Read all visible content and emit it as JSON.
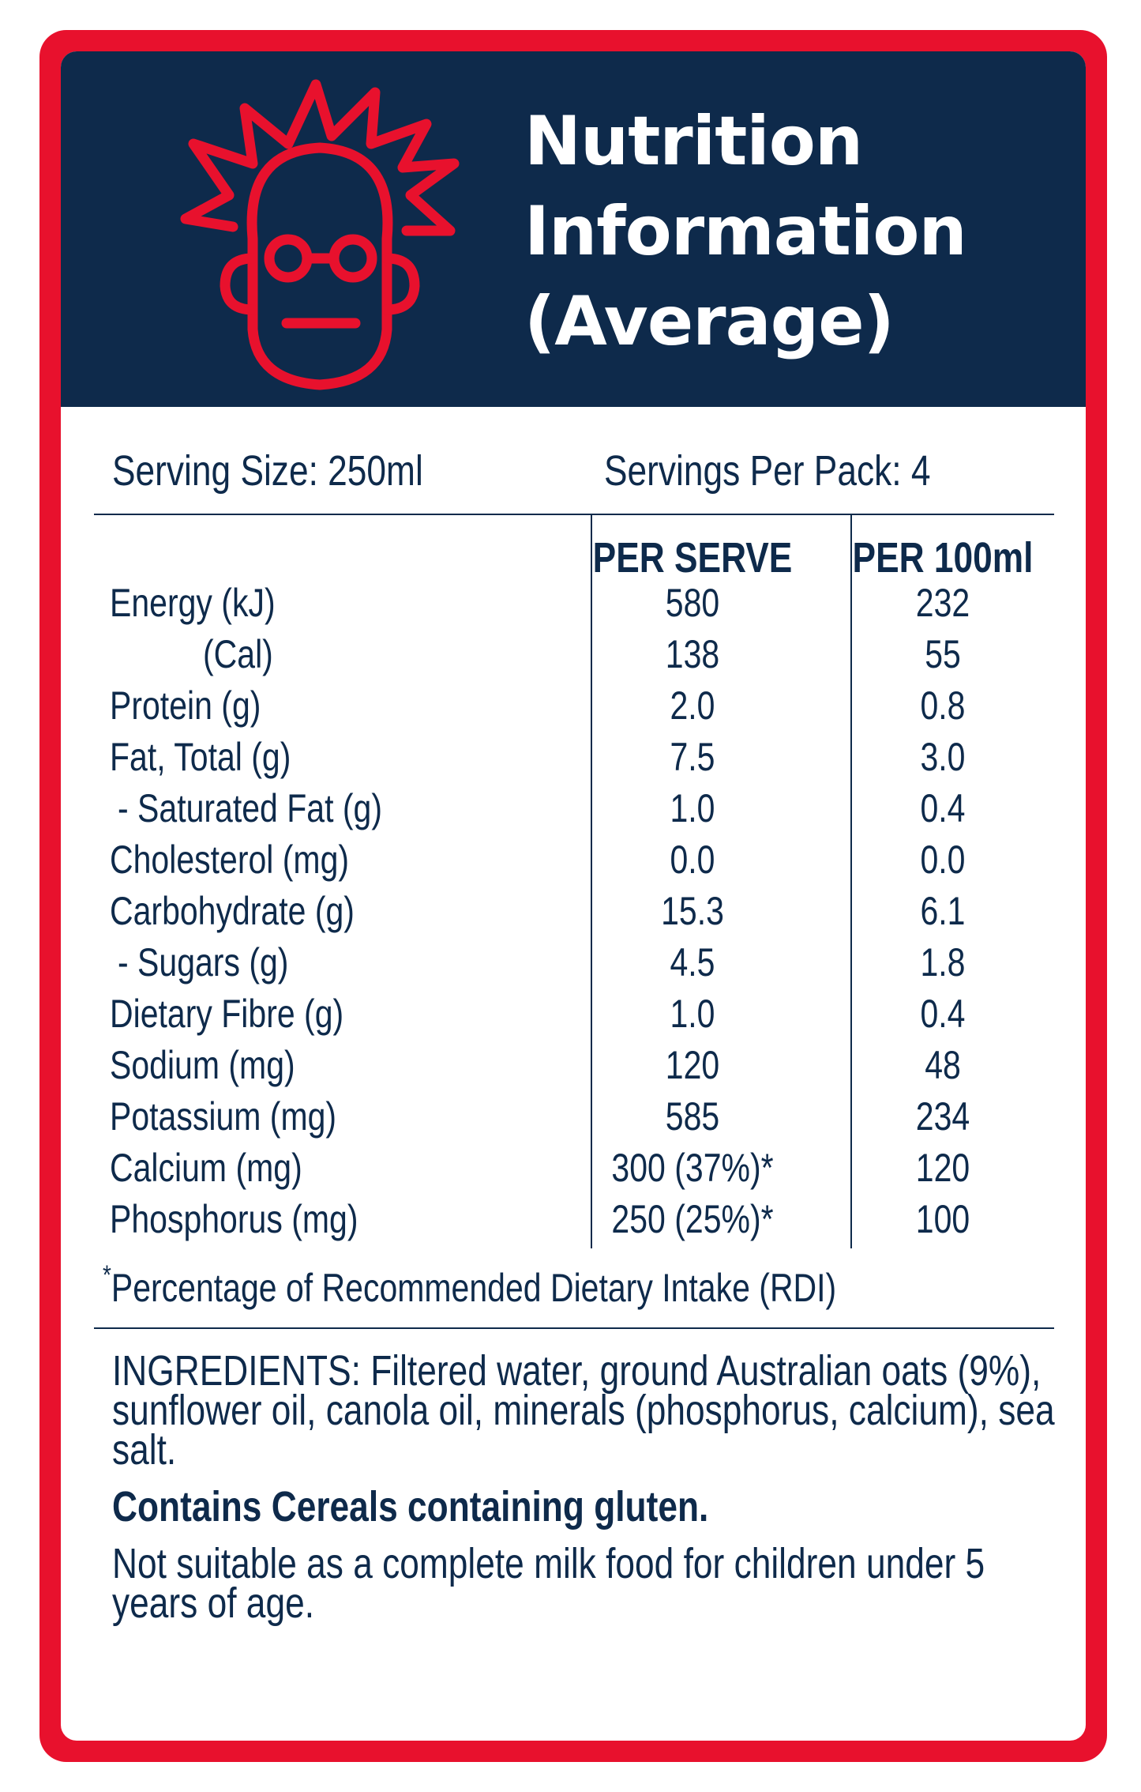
{
  "header": {
    "title_lines": [
      "Nutrition",
      "Information",
      "(Average)"
    ],
    "logo": "scientist-face-icon",
    "colors": {
      "border": "#e8112d",
      "navy": "#0e2a4b",
      "logo": "#e8112d"
    }
  },
  "serving": {
    "size": "Serving Size: 250ml",
    "per_pack": "Servings Per Pack: 4"
  },
  "table": {
    "columns": [
      "PER SERVE",
      "PER 100ml"
    ],
    "rows": [
      {
        "label": "Energy (kJ)",
        "per_serve": "580",
        "per_100ml": "232"
      },
      {
        "label": "(Cal)",
        "per_serve": "138",
        "per_100ml": "55"
      },
      {
        "label": "Protein (g)",
        "per_serve": "2.0",
        "per_100ml": "0.8"
      },
      {
        "label": "Fat, Total (g)",
        "per_serve": "7.5",
        "per_100ml": "3.0"
      },
      {
        "label": "- Saturated Fat (g)",
        "per_serve": "1.0",
        "per_100ml": "0.4"
      },
      {
        "label": "Cholesterol (mg)",
        "per_serve": "0.0",
        "per_100ml": "0.0"
      },
      {
        "label": "Carbohydrate (g)",
        "per_serve": "15.3",
        "per_100ml": "6.1"
      },
      {
        "label": "- Sugars (g)",
        "per_serve": "4.5",
        "per_100ml": "1.8"
      },
      {
        "label": "Dietary Fibre (g)",
        "per_serve": "1.0",
        "per_100ml": "0.4"
      },
      {
        "label": "Sodium (mg)",
        "per_serve": "120",
        "per_100ml": "48"
      },
      {
        "label": "Potassium (mg)",
        "per_serve": "585",
        "per_100ml": "234"
      },
      {
        "label": "Calcium (mg)",
        "per_serve": "300 (37%)*",
        "per_100ml": "120"
      },
      {
        "label": "Phosphorus (mg)",
        "per_serve": "250 (25%)*",
        "per_100ml": "100"
      }
    ]
  },
  "footnote": {
    "mark": "*",
    "text": "Percentage of Recommended Dietary Intake (RDI)"
  },
  "ingredients": {
    "list": "INGREDIENTS: Filtered water, ground Australian oats (9%), sunflower oil, canola oil, minerals (phosphorus, calcium), sea salt.",
    "allergen": "Contains Cereals containing gluten.",
    "warning": "Not suitable as a complete milk food for children under 5 years of age."
  }
}
